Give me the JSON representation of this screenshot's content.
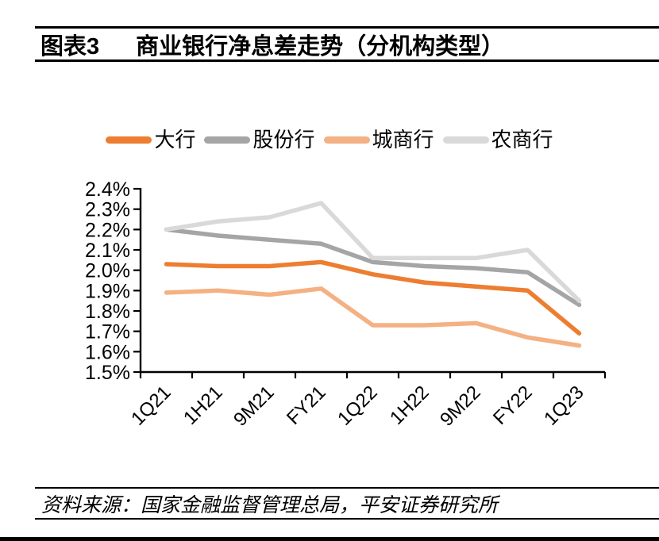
{
  "header": {
    "figure_label": "图表3",
    "title": "商业银行净息差走势（分机构类型）"
  },
  "footer": {
    "source_text": "资料来源：国家金融监督管理总局，平安证券研究所"
  },
  "colors": {
    "series_da_hang": "#ED7D31",
    "series_gufen": "#A5A5A5",
    "series_chengshang": "#F4B183",
    "series_nongshang": "#D9D9D9",
    "axis": "#000000"
  },
  "chart_data": {
    "type": "line",
    "title": "商业银行净息差走势（分机构类型）",
    "categories": [
      "1Q21",
      "1H21",
      "9M21",
      "FY21",
      "1Q22",
      "1H22",
      "9M22",
      "FY22",
      "1Q23"
    ],
    "series": [
      {
        "name": "大行",
        "color": "#ED7D31",
        "values": [
          2.03,
          2.02,
          2.02,
          2.04,
          1.98,
          1.94,
          1.92,
          1.9,
          1.69
        ]
      },
      {
        "name": "股份行",
        "color": "#A5A5A5",
        "values": [
          2.2,
          2.17,
          2.15,
          2.13,
          2.04,
          2.02,
          2.01,
          1.99,
          1.83
        ]
      },
      {
        "name": "城商行",
        "color": "#F4B183",
        "values": [
          1.89,
          1.9,
          1.88,
          1.91,
          1.73,
          1.73,
          1.74,
          1.67,
          1.63
        ]
      },
      {
        "name": "农商行",
        "color": "#D9D9D9",
        "values": [
          2.2,
          2.24,
          2.26,
          2.33,
          2.06,
          2.06,
          2.06,
          2.1,
          1.85
        ]
      }
    ],
    "ylim": [
      1.5,
      2.4
    ],
    "ytick_step": 0.1,
    "y_tick_labels": [
      "1.5%",
      "1.6%",
      "1.7%",
      "1.8%",
      "1.9%",
      "2.0%",
      "2.1%",
      "2.2%",
      "2.3%",
      "2.4%"
    ],
    "xlabel": "",
    "ylabel": "",
    "grid": false,
    "legend_position": "top"
  }
}
